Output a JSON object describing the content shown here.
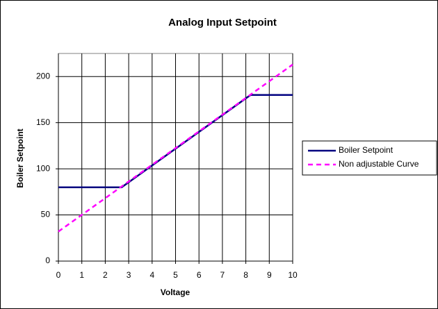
{
  "chart_data": {
    "type": "line",
    "title": "Analog Input Setpoint",
    "x_label": "Voltage",
    "y_label": "Boiler Setpoint",
    "xlim": [
      0,
      10
    ],
    "xticks": [
      0,
      1,
      2,
      3,
      4,
      5,
      6,
      7,
      8,
      9,
      10
    ],
    "ylim": [
      0,
      225
    ],
    "yticks": [
      0,
      50,
      100,
      150,
      200
    ],
    "grid": true,
    "legend": "right",
    "series": [
      {
        "name": "Boiler Setpoint",
        "color": "#000080",
        "dashed": false,
        "x": [
          0,
          2.7,
          8.2,
          10
        ],
        "values": [
          80,
          80,
          180,
          180
        ]
      },
      {
        "name": "Non adjustable Curve",
        "color": "#ff00ff",
        "dashed": true,
        "x": [
          0,
          10
        ],
        "values": [
          32,
          213
        ]
      }
    ]
  }
}
